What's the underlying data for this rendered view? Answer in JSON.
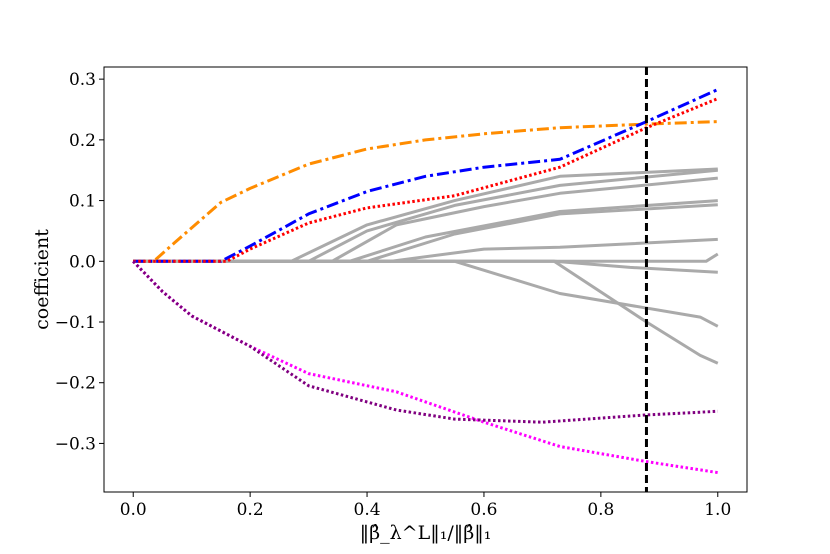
{
  "chart_data": {
    "type": "line",
    "title": "",
    "xlabel": "‖β̂_λ^L‖₁/‖β̂‖₁",
    "ylabel": "coefficient",
    "xlim": [
      -0.05,
      1.05
    ],
    "ylim": [
      -0.38,
      0.32
    ],
    "xticks": [
      "0.0",
      "0.2",
      "0.4",
      "0.6",
      "0.8",
      "1.0"
    ],
    "xtick_values": [
      0.0,
      0.2,
      0.4,
      0.6,
      0.8,
      1.0
    ],
    "yticks": [
      "−0.3",
      "−0.2",
      "−0.1",
      "0.0",
      "0.1",
      "0.2",
      "0.3"
    ],
    "ytick_values": [
      -0.3,
      -0.2,
      -0.1,
      0.0,
      0.1,
      0.2,
      0.3
    ],
    "grid": false,
    "vline": {
      "x": 0.878,
      "color": "#000000",
      "style": "dashed"
    },
    "series": [
      {
        "color": "#ff8c00",
        "style": "dashdot",
        "points": [
          [
            0,
            0
          ],
          [
            0.035,
            0
          ],
          [
            0.07,
            0.03
          ],
          [
            0.15,
            0.097
          ],
          [
            0.2,
            0.12
          ],
          [
            0.3,
            0.16
          ],
          [
            0.4,
            0.185
          ],
          [
            0.5,
            0.2
          ],
          [
            0.6,
            0.21
          ],
          [
            0.73,
            0.22
          ],
          [
            0.878,
            0.226
          ],
          [
            1.0,
            0.23
          ]
        ]
      },
      {
        "color": "#0000ff",
        "style": "dashdot",
        "points": [
          [
            0,
            0
          ],
          [
            0.15,
            0
          ],
          [
            0.2,
            0.025
          ],
          [
            0.3,
            0.078
          ],
          [
            0.4,
            0.115
          ],
          [
            0.5,
            0.14
          ],
          [
            0.6,
            0.155
          ],
          [
            0.73,
            0.168
          ],
          [
            0.878,
            0.23
          ],
          [
            1.0,
            0.283
          ]
        ]
      },
      {
        "color": "#ff0000",
        "style": "dotted",
        "points": [
          [
            0,
            0
          ],
          [
            0.16,
            0
          ],
          [
            0.2,
            0.02
          ],
          [
            0.3,
            0.063
          ],
          [
            0.4,
            0.088
          ],
          [
            0.55,
            0.108
          ],
          [
            0.73,
            0.155
          ],
          [
            0.878,
            0.22
          ],
          [
            1.0,
            0.268
          ]
        ]
      },
      {
        "color": "#ff00ff",
        "style": "dotted",
        "points": [
          [
            0,
            0
          ],
          [
            0.05,
            -0.05
          ],
          [
            0.1,
            -0.09
          ],
          [
            0.2,
            -0.14
          ],
          [
            0.3,
            -0.185
          ],
          [
            0.45,
            -0.215
          ],
          [
            0.6,
            -0.265
          ],
          [
            0.73,
            -0.305
          ],
          [
            0.878,
            -0.33
          ],
          [
            1.0,
            -0.348
          ]
        ]
      },
      {
        "color": "#800080",
        "style": "dotted",
        "points": [
          [
            0,
            0
          ],
          [
            0.05,
            -0.05
          ],
          [
            0.1,
            -0.09
          ],
          [
            0.2,
            -0.14
          ],
          [
            0.3,
            -0.205
          ],
          [
            0.45,
            -0.245
          ],
          [
            0.55,
            -0.26
          ],
          [
            0.7,
            -0.265
          ],
          [
            0.878,
            -0.253
          ],
          [
            1.0,
            -0.247
          ]
        ]
      },
      {
        "color": "#aaaaaa",
        "style": "solid",
        "points": [
          [
            0,
            0
          ],
          [
            0.27,
            0
          ],
          [
            0.4,
            0.06
          ],
          [
            0.55,
            0.1
          ],
          [
            0.73,
            0.14
          ],
          [
            1.0,
            0.152
          ]
        ]
      },
      {
        "color": "#aaaaaa",
        "style": "solid",
        "points": [
          [
            0,
            0
          ],
          [
            0.3,
            0
          ],
          [
            0.4,
            0.05
          ],
          [
            0.55,
            0.092
          ],
          [
            0.73,
            0.125
          ],
          [
            1.0,
            0.15
          ]
        ]
      },
      {
        "color": "#aaaaaa",
        "style": "solid",
        "points": [
          [
            0,
            0
          ],
          [
            0.34,
            0
          ],
          [
            0.45,
            0.06
          ],
          [
            0.6,
            0.09
          ],
          [
            0.73,
            0.112
          ],
          [
            1.0,
            0.137
          ]
        ]
      },
      {
        "color": "#aaaaaa",
        "style": "solid",
        "points": [
          [
            0,
            0
          ],
          [
            0.37,
            0
          ],
          [
            0.5,
            0.04
          ],
          [
            0.73,
            0.082
          ],
          [
            1.0,
            0.1
          ]
        ]
      },
      {
        "color": "#aaaaaa",
        "style": "solid",
        "points": [
          [
            0,
            0
          ],
          [
            0.4,
            0
          ],
          [
            0.55,
            0.045
          ],
          [
            0.73,
            0.078
          ],
          [
            1.0,
            0.093
          ]
        ]
      },
      {
        "color": "#aaaaaa",
        "style": "solid",
        "points": [
          [
            0,
            0
          ],
          [
            0.44,
            0
          ],
          [
            0.6,
            0.02
          ],
          [
            0.73,
            0.023
          ],
          [
            1.0,
            0.036
          ]
        ]
      },
      {
        "color": "#aaaaaa",
        "style": "solid",
        "points": [
          [
            0,
            0
          ],
          [
            0.98,
            0
          ],
          [
            1.0,
            0.012
          ]
        ]
      },
      {
        "color": "#aaaaaa",
        "style": "solid",
        "points": [
          [
            0,
            0
          ],
          [
            0.72,
            0
          ],
          [
            0.85,
            -0.01
          ],
          [
            1.0,
            -0.018
          ]
        ]
      },
      {
        "color": "#aaaaaa",
        "style": "solid",
        "points": [
          [
            0,
            0
          ],
          [
            0.55,
            0
          ],
          [
            0.73,
            -0.053
          ],
          [
            0.97,
            -0.092
          ],
          [
            1.0,
            -0.107
          ]
        ]
      },
      {
        "color": "#aaaaaa",
        "style": "solid",
        "points": [
          [
            0,
            0
          ],
          [
            0.72,
            0
          ],
          [
            0.878,
            -0.1
          ],
          [
            0.97,
            -0.155
          ],
          [
            1.0,
            -0.168
          ]
        ]
      }
    ]
  }
}
